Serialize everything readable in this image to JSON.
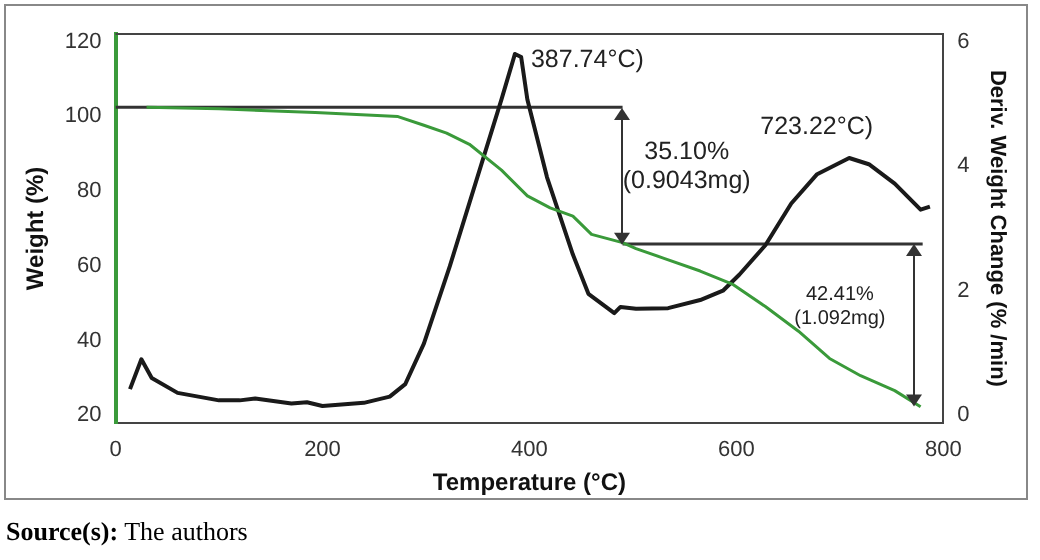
{
  "chart_data": {
    "type": "line",
    "xlabel": "Temperature (°C)",
    "ylabel": "Weight (%)",
    "y2label": "Deriv. Weight Change (% /min)",
    "xlim": [
      0,
      800
    ],
    "xticks": [
      0,
      200,
      400,
      600,
      800
    ],
    "ylim": [
      18,
      122
    ],
    "yticks": [
      20,
      40,
      60,
      80,
      100,
      120
    ],
    "y2lim": [
      -0.12,
      6.12
    ],
    "y2ticks": [
      0,
      2,
      4,
      6
    ],
    "grid": false,
    "legend": false,
    "marker": "none",
    "line_style": "solid",
    "series": [
      {
        "color": "#3a9a3a",
        "x": [
          30,
          100,
          193,
          273,
          298,
          320,
          342,
          373,
          398,
          420,
          442,
          460,
          490,
          503,
          530,
          565,
          596,
          628,
          660,
          690,
          720,
          753,
          778
        ],
        "values": [
          102.4,
          102,
          101,
          99.9,
          97.6,
          95.5,
          92.5,
          85.6,
          78.7,
          75.5,
          73.3,
          68.4,
          66.2,
          64.6,
          62,
          58.6,
          55.1,
          49.1,
          42.5,
          35.2,
          30.6,
          26.6,
          22.3
        ]
      },
      {
        "color": "#1a1a1a",
        "axis": "y2",
        "x": [
          14,
          25,
          35,
          60,
          100,
          120,
          135,
          170,
          185,
          200,
          240,
          265,
          280,
          298,
          323,
          348,
          373,
          386,
          392,
          398,
          417,
          442,
          457,
          482,
          488,
          503,
          534,
          565,
          587,
          603,
          628,
          653,
          678,
          709,
          728,
          753,
          778,
          787
        ],
        "values": [
          0.42,
          0.9,
          0.6,
          0.36,
          0.24,
          0.24,
          0.27,
          0.19,
          0.21,
          0.15,
          0.2,
          0.3,
          0.5,
          1.15,
          2.39,
          3.73,
          5.07,
          5.8,
          5.75,
          5.07,
          3.82,
          2.58,
          1.95,
          1.64,
          1.74,
          1.71,
          1.72,
          1.85,
          2.0,
          2.26,
          2.73,
          3.4,
          3.87,
          4.13,
          4.03,
          3.72,
          3.3,
          3.35
        ]
      },
      {
        "type": "line",
        "color": "#333333",
        "x": [
          0,
          490
        ],
        "values": [
          102.4,
          102.4
        ]
      },
      {
        "type": "line",
        "color": "#333333",
        "x": [
          490,
          780
        ],
        "values": [
          65.8,
          65.8
        ]
      }
    ],
    "annotations": [
      {
        "text": "387.74°C)",
        "x": 386,
        "y": 116.7
      },
      "723.22°C)",
      "35.10%\n(0.9043mg)",
      "42.41%\n(1.092mg)",
      "Source(s): The authors"
    ]
  }
}
